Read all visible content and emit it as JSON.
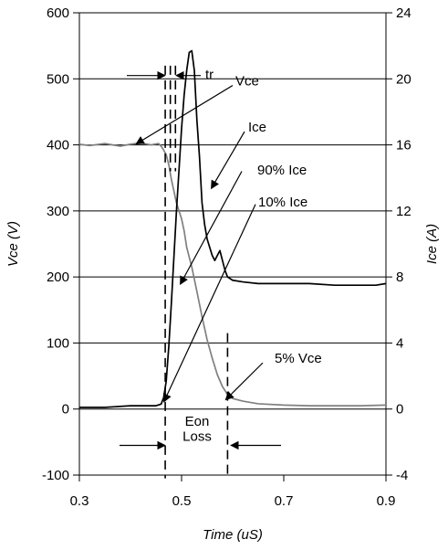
{
  "chart_data": {
    "type": "line",
    "title": "",
    "xlabel": "Time (uS)",
    "ylabel_left": "Vce (V)",
    "ylabel_right": "Ice (A)",
    "xlim": [
      0.3,
      0.9
    ],
    "ylim_left": [
      -100,
      600
    ],
    "ylim_right": [
      -4,
      24
    ],
    "x_ticks": [
      "0.3",
      "0.5",
      "0.7",
      "0.9"
    ],
    "y_ticks_left": [
      "600",
      "500",
      "400",
      "300",
      "200",
      "100",
      "0",
      "-100"
    ],
    "y_ticks_right": [
      "24",
      "20",
      "16",
      "12",
      "8",
      "4",
      "0",
      "-4"
    ],
    "grid": "horizontal",
    "colors": {
      "vce": "#808080",
      "ice": "#000000",
      "grid": "#000000",
      "markers": "#000000"
    },
    "series": [
      {
        "name": "Vce",
        "axis": "left",
        "x": [
          0.3,
          0.32,
          0.35,
          0.38,
          0.4,
          0.42,
          0.44,
          0.455,
          0.46,
          0.465,
          0.47,
          0.475,
          0.48,
          0.485,
          0.49,
          0.495,
          0.5,
          0.505,
          0.51,
          0.52,
          0.53,
          0.54,
          0.55,
          0.56,
          0.57,
          0.58,
          0.59,
          0.6,
          0.62,
          0.65,
          0.7,
          0.75,
          0.8,
          0.85,
          0.9
        ],
        "y": [
          401,
          399,
          402,
          398,
          401,
          403,
          400,
          402,
          398,
          392,
          385,
          370,
          348,
          330,
          312,
          300,
          288,
          270,
          245,
          215,
          178,
          140,
          105,
          77,
          52,
          34,
          22,
          16,
          12,
          8,
          6,
          5,
          5,
          5,
          6
        ]
      },
      {
        "name": "Ice",
        "axis": "right",
        "x": [
          0.3,
          0.35,
          0.4,
          0.45,
          0.46,
          0.465,
          0.47,
          0.475,
          0.48,
          0.485,
          0.49,
          0.5,
          0.505,
          0.51,
          0.515,
          0.52,
          0.525,
          0.53,
          0.535,
          0.54,
          0.545,
          0.55,
          0.555,
          0.56,
          0.565,
          0.57,
          0.575,
          0.58,
          0.585,
          0.59,
          0.6,
          0.62,
          0.65,
          0.7,
          0.75,
          0.8,
          0.85,
          0.88,
          0.9
        ],
        "y": [
          0.1,
          0.1,
          0.2,
          0.2,
          0.3,
          0.7,
          1.7,
          3.8,
          6.4,
          9.2,
          12.0,
          17.0,
          19.0,
          20.5,
          21.6,
          21.7,
          20.5,
          17.5,
          15.3,
          12.5,
          11.2,
          10.3,
          9.8,
          9.3,
          9.0,
          9.3,
          9.6,
          9.0,
          8.4,
          8.0,
          7.8,
          7.7,
          7.6,
          7.6,
          7.6,
          7.5,
          7.5,
          7.5,
          7.6
        ]
      }
    ],
    "markers": [
      {
        "name": "tr-start",
        "x": 0.478,
        "from": 520,
        "to": 360
      },
      {
        "name": "tr-end",
        "x": 0.488,
        "from": 520,
        "to": 360
      },
      {
        "name": "eon-start",
        "x": 0.468,
        "from": 520,
        "to": -105
      },
      {
        "name": "eon-end",
        "x": 0.59,
        "from": 115,
        "to": -105
      }
    ],
    "annotations": [
      {
        "name": "tr",
        "text": "tr"
      },
      {
        "name": "vce",
        "text": "Vce"
      },
      {
        "name": "ice",
        "text": "Ice"
      },
      {
        "name": "ice-90",
        "text": "90% Ice"
      },
      {
        "name": "ice-10",
        "text": "10% Ice"
      },
      {
        "name": "vce-5",
        "text": "5% Vce"
      },
      {
        "name": "eon",
        "text": "Eon"
      },
      {
        "name": "loss",
        "text": "Loss"
      }
    ]
  }
}
